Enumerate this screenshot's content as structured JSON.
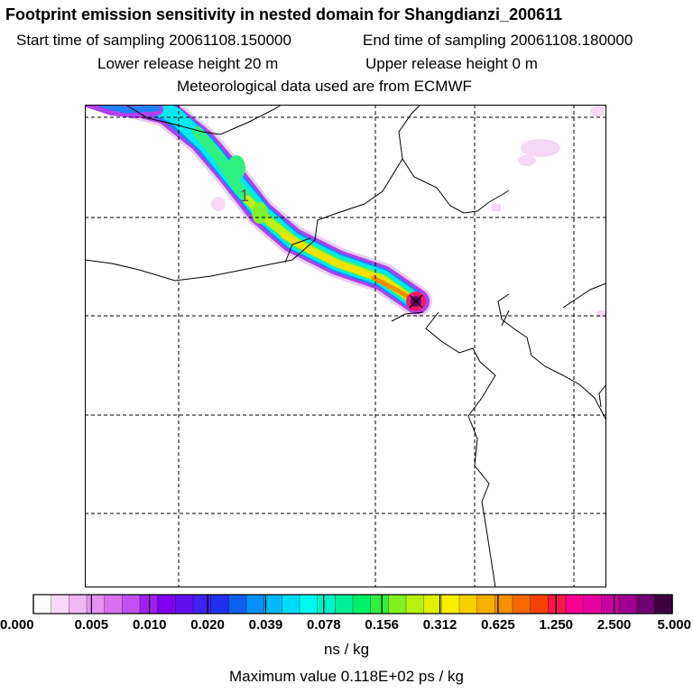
{
  "header": {
    "title": "Footprint emission sensitivity in nested domain for Shangdianzi_200611",
    "start_time": "Start time of sampling 20061108.150000",
    "end_time": "End time of sampling 20061108.180000",
    "lower_release": "Lower release height   20 m",
    "upper_release": "Upper release height    0 m",
    "meteo": "Meteorological data used are from ECMWF"
  },
  "map": {
    "contour_label": "1",
    "release_marker": "receptor-x-icon"
  },
  "colorbar": {
    "tick_labels": [
      "0.000",
      "0.005",
      "0.010",
      "0.020",
      "0.039",
      "0.078",
      "0.156",
      "0.312",
      "0.625",
      "1.250",
      "2.500",
      "5.000"
    ],
    "colors": [
      "#ffffff",
      "#f8d8f8",
      "#f0b8f0",
      "#e890f0",
      "#d870f0",
      "#c050f0",
      "#a020f0",
      "#8000f0",
      "#6010f0",
      "#4020f0",
      "#2030f0",
      "#1060f0",
      "#0090f8",
      "#00b8f8",
      "#00dcf8",
      "#00f8f0",
      "#00f0c8",
      "#00f098",
      "#00f068",
      "#30f040",
      "#80f020",
      "#b8f010",
      "#e0f000",
      "#f8f000",
      "#f8d000",
      "#f8b000",
      "#f89000",
      "#f86800",
      "#f84000",
      "#f81848",
      "#f80090",
      "#e800a0",
      "#c800a0",
      "#a00090",
      "#700070",
      "#400040"
    ],
    "unit": "ns / kg",
    "max_value": "Maximum value  0.118E+02 ps / kg"
  }
}
